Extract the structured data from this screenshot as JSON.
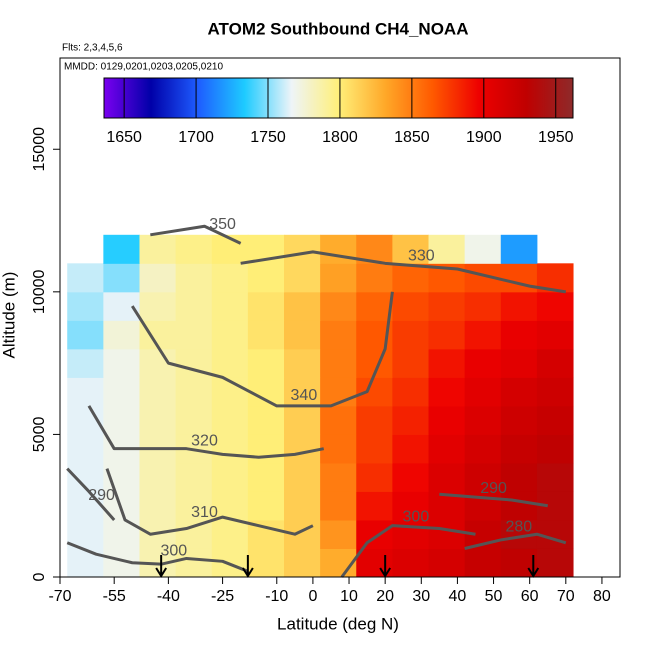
{
  "chart_data": {
    "type": "heatmap",
    "title": "ATOM2 Southbound CH4_NOAA",
    "subtitle": "Flts: 2,3,4,5,6",
    "annotation": "MMDD: 0129,0201,0203,0205,0210",
    "xlabel": "Latitude (deg N)",
    "ylabel": "Altitude (m)",
    "xlim": [
      -70,
      85
    ],
    "ylim": [
      0,
      18200
    ],
    "xticks": [
      -70,
      -55,
      -40,
      -25,
      -10,
      0,
      10,
      20,
      30,
      40,
      50,
      60,
      70,
      80
    ],
    "yticks": [
      0,
      5000,
      10000,
      15000
    ],
    "x_edges": [
      -68,
      -58,
      -48,
      -38,
      -28,
      -18,
      -8,
      2,
      12,
      22,
      32,
      42,
      52,
      62,
      72
    ],
    "y_edges": [
      0,
      1000,
      2000,
      3000,
      4000,
      5000,
      6000,
      7000,
      8000,
      9000,
      10000,
      11000,
      12000
    ],
    "values": [
      [
        1765,
        1770,
        1785,
        1790,
        1795,
        1805,
        1815,
        1830,
        1905,
        1910,
        1915,
        1925,
        1930,
        1935
      ],
      [
        1765,
        1770,
        1785,
        1790,
        1795,
        1805,
        1815,
        1840,
        1900,
        1905,
        1910,
        1925,
        1935,
        1935
      ],
      [
        1765,
        1770,
        1785,
        1790,
        1795,
        1800,
        1815,
        1850,
        1890,
        1900,
        1910,
        1920,
        1930,
        1935
      ],
      [
        1765,
        1770,
        1785,
        1790,
        1795,
        1800,
        1815,
        1850,
        1880,
        1895,
        1910,
        1920,
        1930,
        1935
      ],
      [
        1765,
        1770,
        1785,
        1790,
        1795,
        1800,
        1815,
        1855,
        1875,
        1890,
        1905,
        1915,
        1925,
        1930
      ],
      [
        1765,
        1770,
        1785,
        1790,
        1795,
        1800,
        1815,
        1855,
        1875,
        1885,
        1900,
        1910,
        1920,
        1925
      ],
      [
        1765,
        1770,
        1785,
        1790,
        1795,
        1800,
        1815,
        1850,
        1870,
        1880,
        1895,
        1905,
        1915,
        1920
      ],
      [
        1760,
        1770,
        1785,
        1790,
        1795,
        1800,
        1815,
        1850,
        1865,
        1875,
        1890,
        1900,
        1905,
        1915
      ],
      [
        1750,
        1775,
        1790,
        1790,
        1795,
        1805,
        1820,
        1850,
        1865,
        1875,
        1880,
        1890,
        1900,
        1905
      ],
      [
        1755,
        1765,
        1785,
        1790,
        1795,
        1805,
        1820,
        1845,
        1860,
        1870,
        1875,
        1880,
        1890,
        1895
      ],
      [
        1760,
        1750,
        1780,
        1790,
        1795,
        1800,
        1810,
        1835,
        1850,
        1860,
        1865,
        1870,
        1870,
        1880
      ],
      [
        null,
        1735,
        1790,
        1795,
        1800,
        1800,
        1810,
        1830,
        1845,
        1820,
        1790,
        1770,
        1720,
        null
      ]
    ],
    "colorbar_lim": [
      1636,
      1962
    ],
    "colorbar_ticks": [
      1650,
      1700,
      1750,
      1800,
      1850,
      1900,
      1950
    ],
    "colormap": [
      "#7a00f0",
      "#0000a8",
      "#1e5cff",
      "#1ecbff",
      "#eef4f8",
      "#fff07a",
      "#ffa828",
      "#ff5a00",
      "#ee0000",
      "#c00000",
      "#8e2a2a"
    ],
    "contour_color": "#555555",
    "contours": [
      {
        "name": "300",
        "x": [
          -68,
          -60,
          -50,
          -42,
          -35,
          -25,
          -18
        ],
        "y": [
          1200,
          800,
          500,
          450,
          650,
          550,
          200
        ]
      },
      {
        "name": "310",
        "x": [
          -57,
          -52,
          -45,
          -35,
          -25,
          -15,
          -5,
          0
        ],
        "y": [
          3800,
          2000,
          1500,
          1700,
          2100,
          1800,
          1500,
          1800
        ]
      },
      {
        "name": "320",
        "x": [
          -62,
          -55,
          -45,
          -35,
          -25,
          -15,
          -5,
          3
        ],
        "y": [
          6000,
          4500,
          4500,
          4500,
          4300,
          4200,
          4300,
          4500
        ]
      },
      {
        "name": "340",
        "x": [
          -50,
          -40,
          -25,
          -10,
          5,
          15,
          20,
          22
        ],
        "y": [
          9500,
          7500,
          7000,
          6000,
          6000,
          6500,
          8000,
          10000
        ]
      },
      {
        "name": "330",
        "x": [
          -20,
          0,
          20,
          40,
          60,
          70
        ],
        "y": [
          11000,
          11400,
          11000,
          10800,
          10200,
          10000
        ]
      },
      {
        "name": "350",
        "x": [
          -45,
          -30,
          -20
        ],
        "y": [
          12000,
          12300,
          11700
        ]
      },
      {
        "name": "290",
        "x": [
          -68,
          -62,
          -55
        ],
        "y": [
          3800,
          3000,
          2000
        ]
      },
      {
        "name": "290",
        "x": [
          35,
          45,
          55,
          65
        ],
        "y": [
          2900,
          2800,
          2700,
          2500
        ]
      },
      {
        "name": "300",
        "x": [
          8,
          15,
          22,
          35,
          45
        ],
        "y": [
          0,
          1200,
          1800,
          1700,
          1500
        ]
      },
      {
        "name": "280",
        "x": [
          42,
          52,
          62,
          70
        ],
        "y": [
          1000,
          1300,
          1500,
          1200
        ]
      }
    ],
    "profile_lats": [
      -42,
      -18,
      20,
      61
    ]
  }
}
